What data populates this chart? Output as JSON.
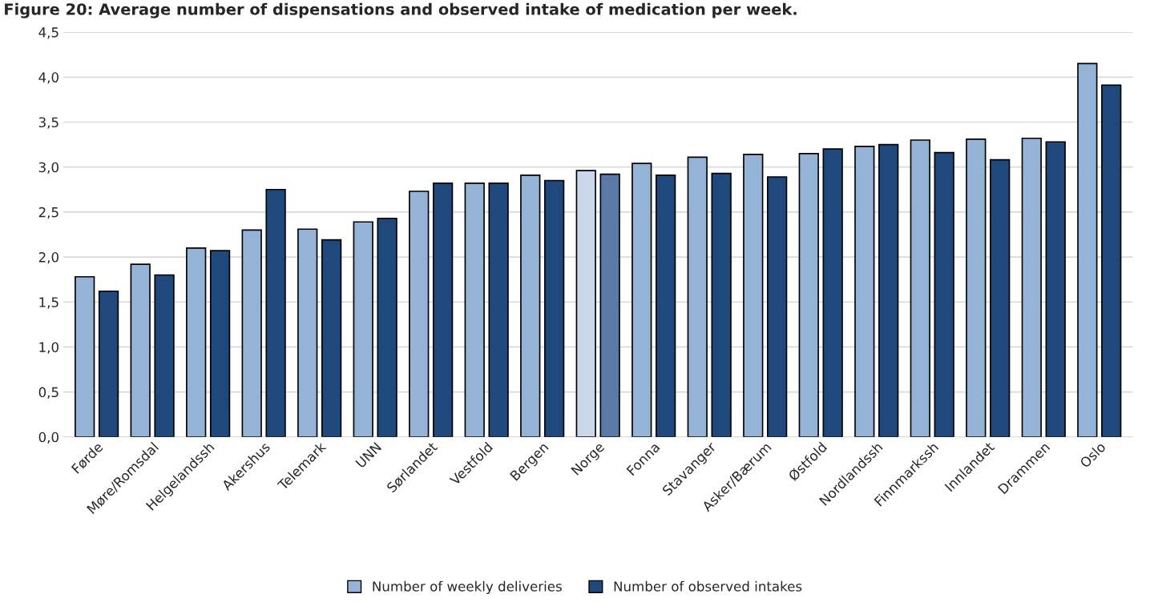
{
  "chart_data": {
    "type": "bar",
    "title": "Figure 20: Average number of dispensations and observed intake of medication per week.",
    "categories": [
      "Førde",
      "Møre/Romsdal",
      "Helgelandssh",
      "Akershus",
      "Telemark",
      "UNN",
      "Sørlandet",
      "Vestfold",
      "Bergen",
      "Norge",
      "Fonna",
      "Stavanger",
      "Asker/Bærum",
      "Østfold",
      "Nordlandssh",
      "Finnmarkssh",
      "Innlandet",
      "Drammen",
      "Oslo"
    ],
    "series": [
      {
        "name": "Number of weekly deliveries",
        "color": "#95b3d7",
        "colors": [
          "#95b3d7",
          "#95b3d7",
          "#95b3d7",
          "#95b3d7",
          "#95b3d7",
          "#95b3d7",
          "#95b3d7",
          "#95b3d7",
          "#95b3d7",
          "#c9d8ea",
          "#95b3d7",
          "#95b3d7",
          "#95b3d7",
          "#95b3d7",
          "#95b3d7",
          "#95b3d7",
          "#95b3d7",
          "#95b3d7",
          "#95b3d7"
        ],
        "values": [
          1.78,
          1.92,
          2.1,
          2.3,
          2.31,
          2.39,
          2.73,
          2.82,
          2.91,
          2.96,
          3.04,
          3.11,
          3.14,
          3.15,
          3.23,
          3.3,
          3.31,
          3.32,
          4.15
        ]
      },
      {
        "name": "Number of observed intakes",
        "color": "#1f497d",
        "colors": [
          "#1f497d",
          "#1f497d",
          "#1f497d",
          "#1f497d",
          "#1f497d",
          "#1f497d",
          "#1f497d",
          "#1f497d",
          "#1f497d",
          "#5a7aa6",
          "#1f497d",
          "#1f497d",
          "#1f497d",
          "#1f497d",
          "#1f497d",
          "#1f497d",
          "#1f497d",
          "#1f497d",
          "#1f497d"
        ],
        "values": [
          1.62,
          1.8,
          2.07,
          2.75,
          2.19,
          2.43,
          2.82,
          2.82,
          2.85,
          2.92,
          2.91,
          2.93,
          2.89,
          3.2,
          3.25,
          3.16,
          3.08,
          3.28,
          3.91
        ]
      }
    ],
    "ylim": [
      0,
      4.5
    ],
    "yticks": [
      {
        "value": 0,
        "label": "0,0"
      },
      {
        "value": 0.5,
        "label": "0,5"
      },
      {
        "value": 1,
        "label": "1,0"
      },
      {
        "value": 1.5,
        "label": "1,5"
      },
      {
        "value": 2,
        "label": "2,0"
      },
      {
        "value": 2.5,
        "label": "2,5"
      },
      {
        "value": 3,
        "label": "3,0"
      },
      {
        "value": 3.5,
        "label": "3,5"
      },
      {
        "value": 4,
        "label": "4,0"
      },
      {
        "value": 4.5,
        "label": "4,5"
      }
    ],
    "grid": "y",
    "legend": "bottom"
  }
}
